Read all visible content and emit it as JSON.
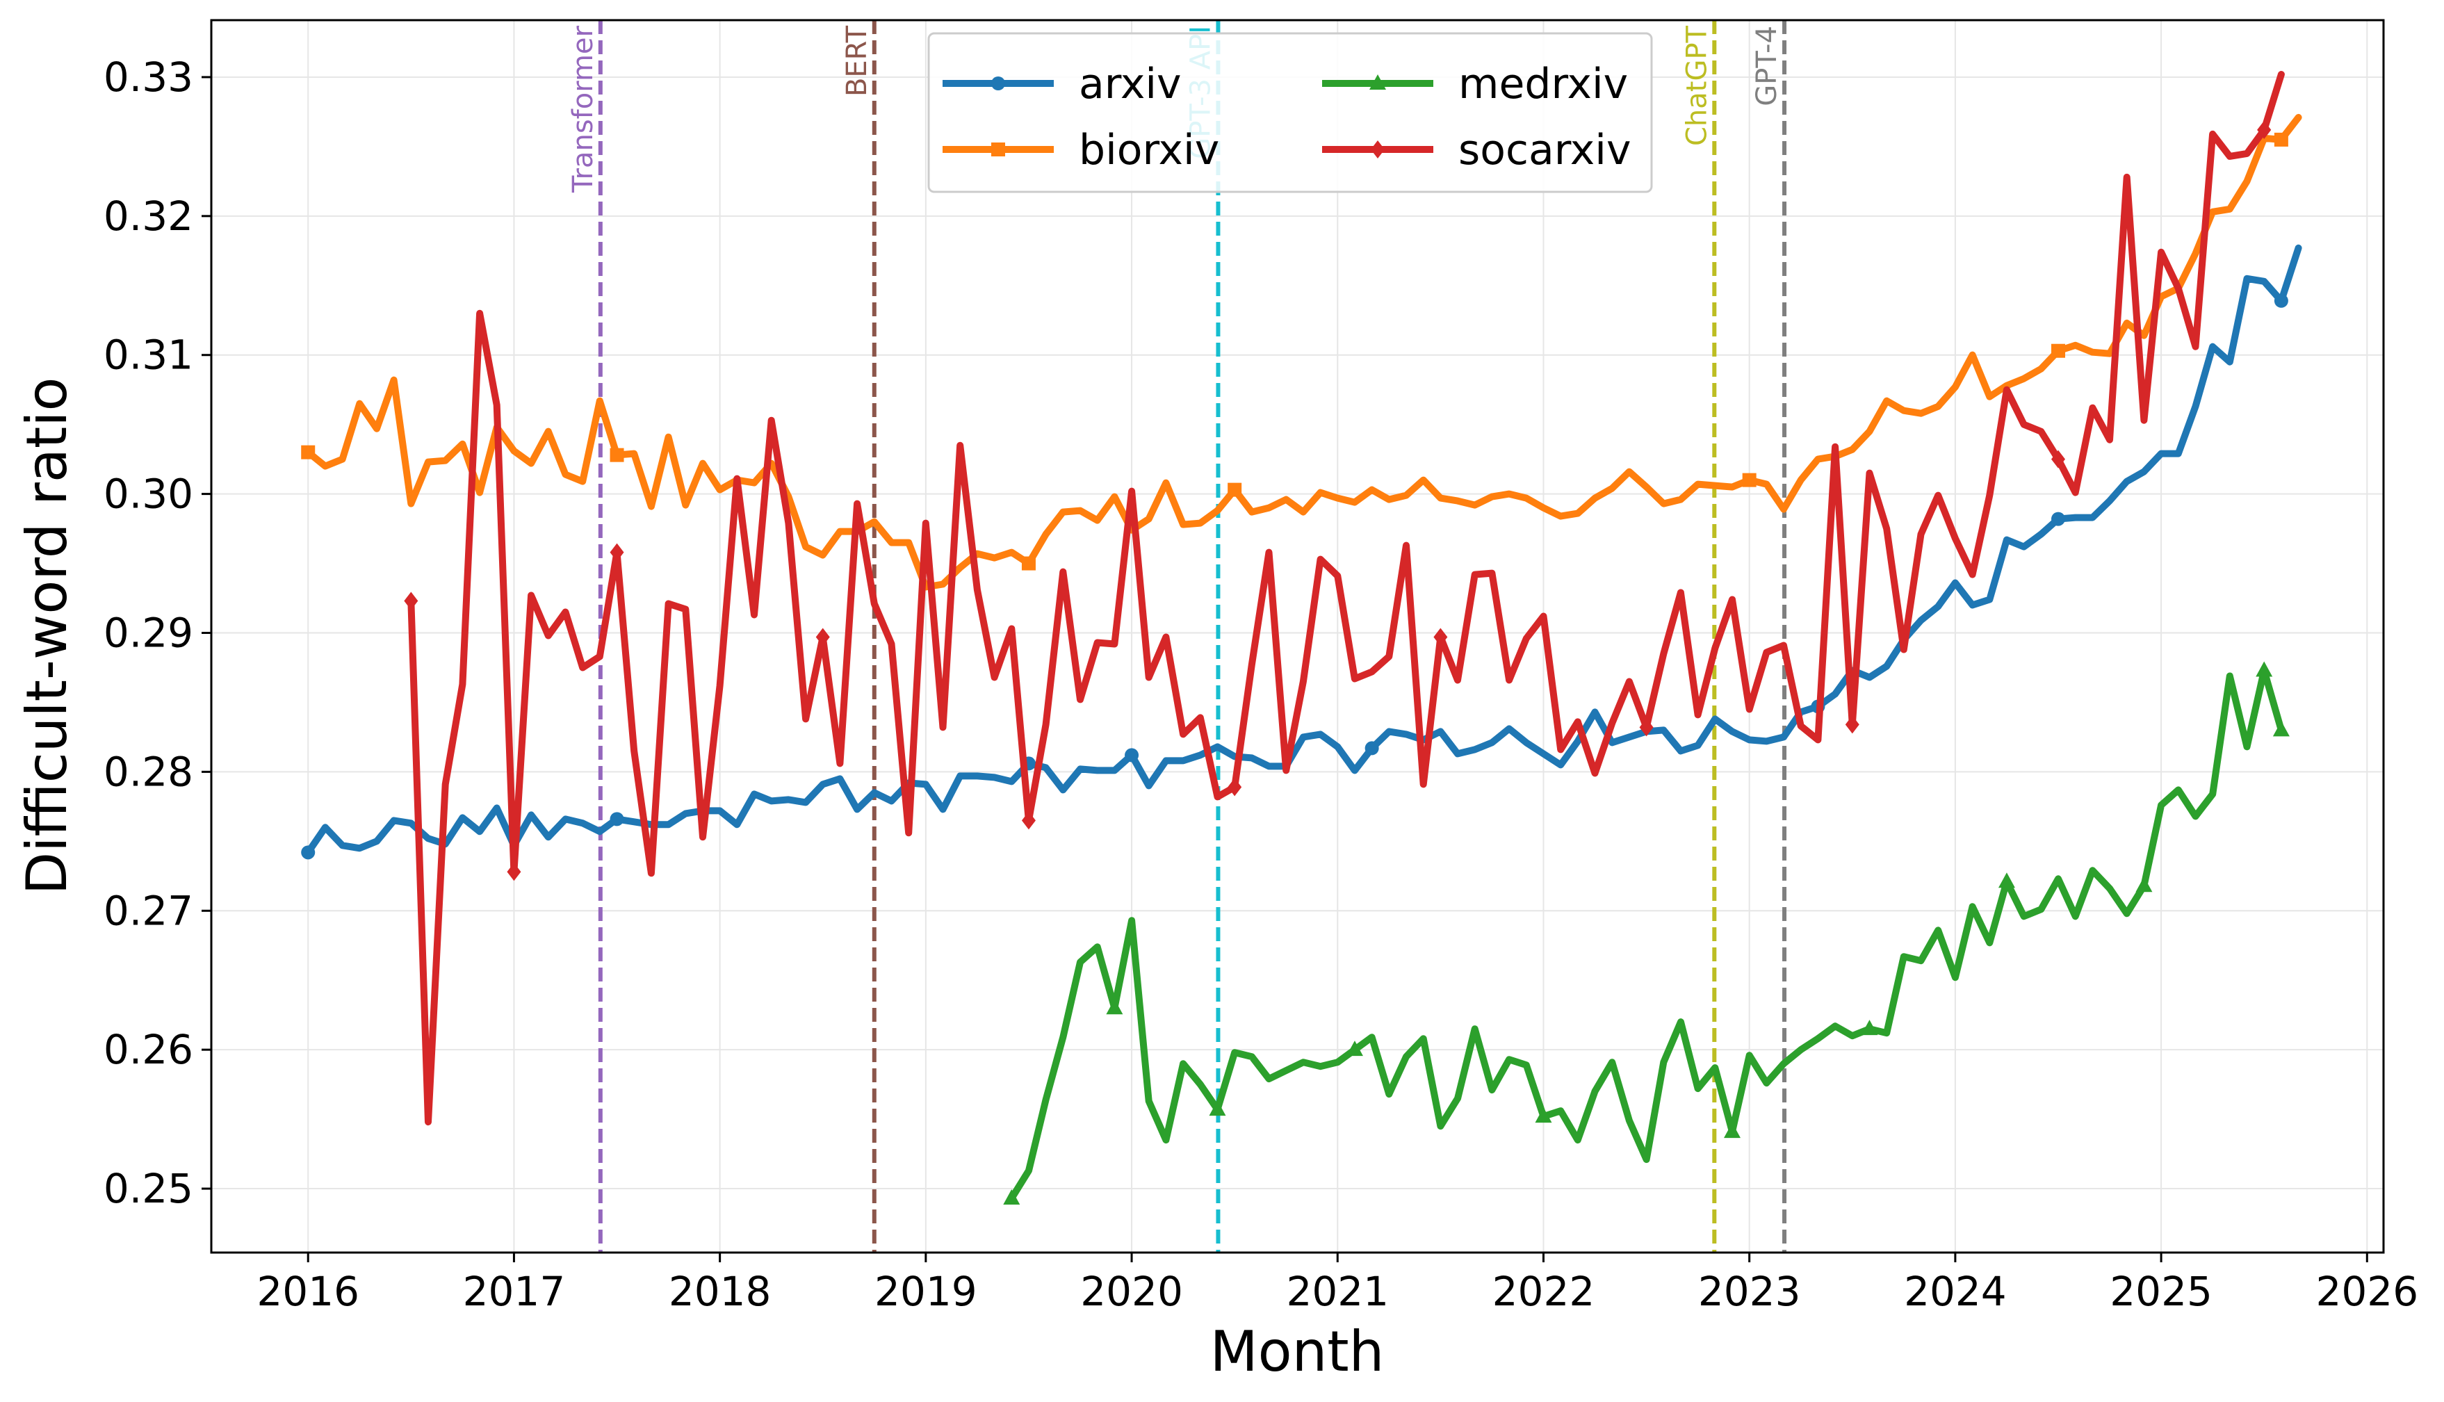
{
  "chart_data": {
    "type": "line",
    "title": "",
    "xlabel": "Month",
    "ylabel": "Difficult-word ratio",
    "xlim": [
      2015.53,
      2026.08
    ],
    "ylim": [
      0.2454,
      0.3341
    ],
    "grid": true,
    "legend_position": "top-center",
    "x_ticks": [
      2016,
      2017,
      2018,
      2019,
      2020,
      2021,
      2022,
      2023,
      2024,
      2025,
      2026
    ],
    "x_tick_labels": [
      "2016",
      "2017",
      "2018",
      "2019",
      "2020",
      "2021",
      "2022",
      "2023",
      "2024",
      "2025",
      "2026"
    ],
    "y_ticks": [
      0.25,
      0.26,
      0.27,
      0.28,
      0.29,
      0.3,
      0.31,
      0.32,
      0.33
    ],
    "y_tick_labels": [
      "0.25",
      "0.26",
      "0.27",
      "0.28",
      "0.29",
      "0.30",
      "0.31",
      "0.32",
      "0.33"
    ],
    "events": [
      {
        "label": "Transformer",
        "x": 2017.42,
        "color": "#9467bd"
      },
      {
        "label": "BERT",
        "x": 2018.75,
        "color": "#8c564b"
      },
      {
        "label": "GPT-3 API",
        "x": 2020.42,
        "color": "#17becf"
      },
      {
        "label": "ChatGPT",
        "x": 2022.83,
        "color": "#bcbd22"
      },
      {
        "label": "GPT-4",
        "x": 2023.17,
        "color": "#7f7f7f"
      }
    ],
    "series": [
      {
        "name": "arxiv",
        "color": "#1f77b4",
        "marker": "circle",
        "start": 2016.0,
        "values": [
          0.2742,
          0.276,
          0.2747,
          0.2745,
          0.275,
          0.2765,
          0.2763,
          0.2752,
          0.2748,
          0.2767,
          0.2757,
          0.2774,
          0.2747,
          0.2769,
          0.2753,
          0.2766,
          0.2763,
          0.2757,
          0.2766,
          0.2764,
          0.2762,
          0.2762,
          0.277,
          0.2772,
          0.2772,
          0.2762,
          0.2784,
          0.2779,
          0.278,
          0.2778,
          0.2791,
          0.2795,
          0.2773,
          0.2785,
          0.2779,
          0.2792,
          0.2791,
          0.2773,
          0.2797,
          0.2797,
          0.2796,
          0.2793,
          0.2806,
          0.2803,
          0.2787,
          0.2802,
          0.2801,
          0.2801,
          0.2812,
          0.279,
          0.2808,
          0.2808,
          0.2812,
          0.2818,
          0.2811,
          0.281,
          0.2804,
          0.2804,
          0.2825,
          0.2827,
          0.2818,
          0.2801,
          0.2817,
          0.2829,
          0.2827,
          0.2823,
          0.2829,
          0.2813,
          0.2816,
          0.2821,
          0.2831,
          0.2821,
          0.2813,
          0.2805,
          0.2822,
          0.2843,
          0.2821,
          0.2825,
          0.2829,
          0.283,
          0.2815,
          0.2819,
          0.2838,
          0.2829,
          0.2823,
          0.2822,
          0.2825,
          0.2843,
          0.2847,
          0.2856,
          0.2873,
          0.2868,
          0.2876,
          0.2895,
          0.2909,
          0.2919,
          0.2936,
          0.292,
          0.2924,
          0.2967,
          0.2962,
          0.2971,
          0.2982,
          0.2983,
          0.2983,
          0.2995,
          0.3009,
          0.3016,
          0.3029,
          0.3029,
          0.3063,
          0.3106,
          0.3095,
          0.3155,
          0.3153,
          0.3139,
          0.3177
        ]
      },
      {
        "name": "biorxiv",
        "color": "#ff7f0e",
        "marker": "square",
        "start": 2016.0,
        "values": [
          0.303,
          0.302,
          0.3025,
          0.3065,
          0.3047,
          0.3082,
          0.2993,
          0.3023,
          0.3024,
          0.3036,
          0.3001,
          0.3048,
          0.3031,
          0.3022,
          0.3045,
          0.3014,
          0.3009,
          0.3067,
          0.3028,
          0.3029,
          0.2991,
          0.3041,
          0.2992,
          0.3022,
          0.3003,
          0.301,
          0.3008,
          0.3022,
          0.2998,
          0.2962,
          0.2956,
          0.2973,
          0.2973,
          0.298,
          0.2965,
          0.2965,
          0.2933,
          0.2935,
          0.2947,
          0.2957,
          0.2954,
          0.2958,
          0.295,
          0.2971,
          0.2987,
          0.2988,
          0.2981,
          0.2998,
          0.2974,
          0.2982,
          0.3008,
          0.2978,
          0.2979,
          0.2988,
          0.3003,
          0.2987,
          0.299,
          0.2996,
          0.2987,
          0.3001,
          0.2997,
          0.2994,
          0.3003,
          0.2996,
          0.2999,
          0.301,
          0.2997,
          0.2995,
          0.2992,
          0.2998,
          0.3,
          0.2997,
          0.299,
          0.2984,
          0.2986,
          0.2997,
          0.3004,
          0.3016,
          0.3005,
          0.2993,
          0.2996,
          0.3007,
          0.3006,
          0.3005,
          0.301,
          0.3007,
          0.2989,
          0.301,
          0.3025,
          0.3027,
          0.3032,
          0.3045,
          0.3067,
          0.306,
          0.3058,
          0.3063,
          0.3077,
          0.31,
          0.307,
          0.3078,
          0.3083,
          0.309,
          0.3103,
          0.3107,
          0.3102,
          0.3101,
          0.3123,
          0.3114,
          0.3142,
          0.3148,
          0.3173,
          0.3203,
          0.3205,
          0.3225,
          0.3256,
          0.3255,
          0.3271
        ]
      },
      {
        "name": "medrxiv",
        "color": "#2ca02c",
        "marker": "triangle",
        "start": 2019.4167,
        "values": [
          0.2493,
          0.2513,
          0.2564,
          0.2609,
          0.2663,
          0.2674,
          0.263,
          0.2693,
          0.2563,
          0.2535,
          0.259,
          0.2575,
          0.2557,
          0.2598,
          0.2595,
          0.2579,
          0.2585,
          0.2591,
          0.2588,
          0.2591,
          0.26,
          0.2609,
          0.2568,
          0.2595,
          0.2608,
          0.2545,
          0.2565,
          0.2615,
          0.2571,
          0.2593,
          0.2589,
          0.2552,
          0.2556,
          0.2535,
          0.257,
          0.2591,
          0.2549,
          0.2521,
          0.2591,
          0.262,
          0.2572,
          0.2587,
          0.2541,
          0.2596,
          0.2576,
          0.259,
          0.26,
          0.2608,
          0.2617,
          0.261,
          0.2615,
          0.2612,
          0.2667,
          0.2664,
          0.2686,
          0.2652,
          0.2703,
          0.2677,
          0.2721,
          0.2696,
          0.2701,
          0.2723,
          0.2696,
          0.2729,
          0.2716,
          0.2698,
          0.2718,
          0.2776,
          0.2787,
          0.2768,
          0.2784,
          0.2869,
          0.2818,
          0.2873,
          0.283
        ]
      },
      {
        "name": "socarxiv",
        "color": "#d62728",
        "marker": "diamond",
        "start": 2016.5,
        "values": [
          0.2923,
          0.2548,
          0.2791,
          0.2863,
          0.313,
          0.3064,
          0.2728,
          0.2927,
          0.2898,
          0.2915,
          0.2875,
          0.2883,
          0.2958,
          0.2815,
          0.2727,
          0.2921,
          0.2917,
          0.2753,
          0.2862,
          0.3011,
          0.2913,
          0.3053,
          0.2979,
          0.2838,
          0.2897,
          0.2806,
          0.2993,
          0.2921,
          0.2892,
          0.2756,
          0.2979,
          0.2832,
          0.3035,
          0.2931,
          0.2868,
          0.2903,
          0.2765,
          0.2834,
          0.2944,
          0.2852,
          0.2893,
          0.2892,
          0.3002,
          0.2868,
          0.2897,
          0.2827,
          0.2839,
          0.2782,
          0.2789,
          0.2877,
          0.2958,
          0.2801,
          0.2865,
          0.2953,
          0.2941,
          0.2867,
          0.2872,
          0.2883,
          0.2963,
          0.2791,
          0.2897,
          0.2866,
          0.2942,
          0.2943,
          0.2866,
          0.2896,
          0.2912,
          0.2816,
          0.2836,
          0.2799,
          0.2835,
          0.2865,
          0.2832,
          0.2885,
          0.2929,
          0.2841,
          0.2889,
          0.2924,
          0.2845,
          0.2886,
          0.2891,
          0.2833,
          0.2823,
          0.3034,
          0.2834,
          0.3015,
          0.2975,
          0.2888,
          0.2971,
          0.2999,
          0.2968,
          0.2942,
          0.2999,
          0.3075,
          0.305,
          0.3045,
          0.3025,
          0.3001,
          0.3062,
          0.3039,
          0.3228,
          0.3053,
          0.3174,
          0.3148,
          0.3106,
          0.3259,
          0.3243,
          0.3245,
          0.3262,
          0.3302
        ]
      }
    ]
  }
}
